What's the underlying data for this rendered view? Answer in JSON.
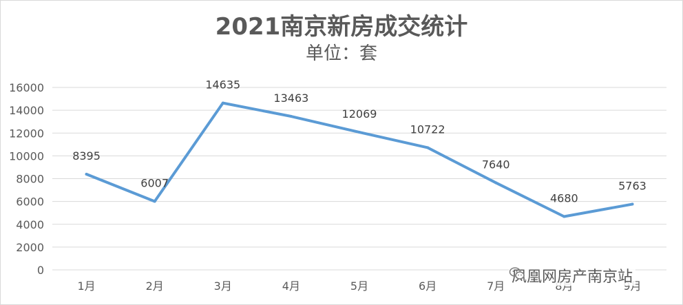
{
  "chart_data": {
    "type": "line",
    "title": "2021南京新房成交统计",
    "subtitle": "单位：套",
    "categories": [
      "1月",
      "2月",
      "3月",
      "4月",
      "5月",
      "6月",
      "7月",
      "8月",
      "9月"
    ],
    "values": [
      8395,
      6007,
      14635,
      13463,
      12069,
      10722,
      7640,
      4680,
      5763
    ],
    "ylim": [
      0,
      16000
    ],
    "yticks": [
      0,
      2000,
      4000,
      6000,
      8000,
      10000,
      12000,
      14000,
      16000
    ],
    "grid": true,
    "legend": "none",
    "line_color": "#5b9bd5"
  },
  "watermark": {
    "text": "凤凰网房产南京站",
    "icon": "wechat-icon"
  }
}
